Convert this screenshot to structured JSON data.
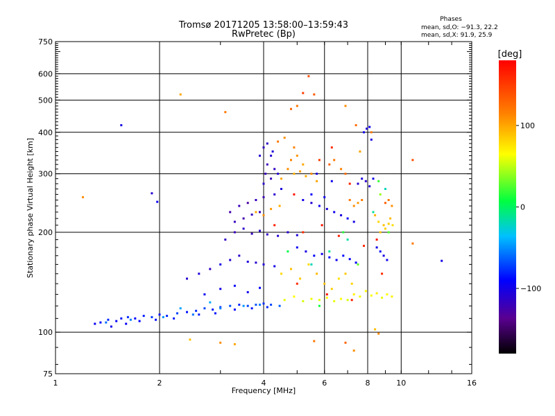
{
  "chart_data": {
    "type": "scatter",
    "title": "Tromsø 20171205 13:58:00–13:59:43",
    "subtitle": "RwPretec (Bp)",
    "xlabel": "Frequency [MHz]",
    "ylabel": "Stationary phase Virtual Height [km]",
    "x_scale": "log",
    "y_scale": "log",
    "xlim": [
      1,
      16
    ],
    "ylim": [
      75,
      750
    ],
    "x_ticks": [
      1,
      2,
      4,
      6,
      8,
      10,
      16
    ],
    "x_tick_labels": [
      "1",
      "2",
      "4",
      "6",
      "8",
      "10",
      "16"
    ],
    "y_ticks": [
      75,
      100,
      200,
      300,
      400,
      500,
      600,
      750
    ],
    "y_tick_labels": [
      "75",
      "100",
      "200",
      "300",
      "400",
      "500",
      "600",
      "750"
    ],
    "grid": true,
    "stats": {
      "header": "Phases",
      "line1": "mean, sd,O: −91.3, 22.2",
      "line2": "mean, sd,X:  91.9, 25.9"
    },
    "colorbar": {
      "label": "[deg]",
      "range": [
        -180,
        180
      ],
      "ticks": [
        100,
        0,
        -100
      ],
      "tick_labels": [
        "100",
        "0",
        "−100"
      ]
    },
    "series": [
      {
        "points": [
          [
            1.3,
            106,
            -95
          ],
          [
            1.35,
            107,
            -88
          ],
          [
            1.42,
            109,
            -80
          ],
          [
            1.5,
            108,
            -92
          ],
          [
            1.55,
            110,
            -85
          ],
          [
            1.62,
            111,
            -78
          ],
          [
            1.7,
            110,
            -90
          ],
          [
            1.8,
            112,
            -82
          ],
          [
            1.9,
            111,
            -75
          ],
          [
            2.0,
            113,
            -88
          ],
          [
            2.1,
            112,
            -80
          ],
          [
            2.25,
            114,
            -72
          ],
          [
            2.4,
            115,
            -85
          ],
          [
            2.55,
            116,
            -78
          ],
          [
            2.7,
            118,
            -70
          ],
          [
            2.85,
            117,
            -82
          ],
          [
            3.0,
            119,
            -75
          ],
          [
            3.2,
            120,
            -68
          ],
          [
            3.4,
            121,
            -80
          ],
          [
            3.6,
            120,
            -72
          ],
          [
            3.8,
            121,
            -66
          ],
          [
            4.0,
            122,
            -78
          ],
          [
            4.2,
            121,
            -70
          ],
          [
            4.45,
            120,
            -64
          ],
          [
            1.45,
            104,
            -98
          ],
          [
            1.6,
            106,
            -94
          ],
          [
            1.75,
            108,
            -90
          ],
          [
            1.95,
            109,
            -86
          ],
          [
            2.2,
            110,
            -84
          ],
          [
            2.6,
            113,
            -82
          ],
          [
            2.9,
            114,
            -86
          ],
          [
            3.3,
            117,
            -88
          ],
          [
            3.7,
            118,
            -84
          ],
          [
            4.1,
            119,
            -80
          ],
          [
            2.4,
            145,
            -110
          ],
          [
            2.6,
            150,
            -105
          ],
          [
            2.8,
            155,
            -115
          ],
          [
            3.0,
            160,
            -100
          ],
          [
            3.2,
            165,
            -108
          ],
          [
            3.4,
            170,
            -112
          ],
          [
            3.6,
            163,
            -104
          ],
          [
            3.8,
            162,
            -110
          ],
          [
            4.0,
            160,
            -106
          ],
          [
            4.3,
            158,
            -100
          ],
          [
            2.7,
            130,
            -95
          ],
          [
            3.0,
            135,
            -100
          ],
          [
            3.3,
            138,
            -92
          ],
          [
            3.6,
            132,
            -96
          ],
          [
            3.9,
            136,
            -90
          ],
          [
            3.1,
            190,
            -115
          ],
          [
            3.3,
            200,
            -120
          ],
          [
            3.5,
            205,
            -112
          ],
          [
            3.7,
            198,
            -118
          ],
          [
            3.9,
            202,
            -110
          ],
          [
            4.1,
            197,
            -114
          ],
          [
            4.4,
            195,
            -108
          ],
          [
            4.7,
            200,
            -112
          ],
          [
            5.0,
            196,
            -106
          ],
          [
            3.2,
            230,
            -125
          ],
          [
            3.4,
            240,
            -120
          ],
          [
            3.6,
            245,
            -128
          ],
          [
            3.8,
            250,
            -118
          ],
          [
            4.0,
            255,
            -122
          ],
          [
            3.3,
            215,
            -118
          ],
          [
            3.5,
            220,
            -124
          ],
          [
            3.7,
            226,
            -116
          ],
          [
            3.9,
            230,
            -120
          ],
          [
            4.0,
            280,
            -112
          ],
          [
            4.2,
            290,
            -118
          ],
          [
            4.4,
            300,
            -110
          ],
          [
            4.3,
            310,
            -115
          ],
          [
            4.1,
            320,
            -120
          ],
          [
            4.2,
            340,
            -108
          ],
          [
            4.0,
            360,
            -116
          ],
          [
            4.1,
            370,
            -112
          ],
          [
            4.3,
            260,
            -110
          ],
          [
            4.5,
            270,
            -104
          ],
          [
            3.9,
            340,
            -110
          ],
          [
            4.05,
            300,
            -118
          ],
          [
            4.25,
            350,
            -106
          ],
          [
            5.0,
            180,
            -95
          ],
          [
            5.3,
            175,
            -100
          ],
          [
            5.6,
            170,
            -92
          ],
          [
            5.9,
            172,
            -98
          ],
          [
            6.2,
            168,
            -90
          ],
          [
            6.5,
            165,
            -96
          ],
          [
            6.8,
            170,
            -88
          ],
          [
            7.1,
            166,
            -94
          ],
          [
            7.4,
            162,
            -90
          ],
          [
            5.2,
            250,
            -100
          ],
          [
            5.5,
            245,
            -108
          ],
          [
            5.8,
            240,
            -96
          ],
          [
            6.1,
            235,
            -104
          ],
          [
            6.4,
            230,
            -98
          ],
          [
            6.7,
            225,
            -102
          ],
          [
            7.0,
            220,
            -94
          ],
          [
            7.3,
            215,
            -100
          ],
          [
            7.5,
            280,
            -110
          ],
          [
            7.7,
            290,
            -104
          ],
          [
            7.9,
            285,
            -112
          ],
          [
            8.1,
            275,
            -106
          ],
          [
            8.3,
            290,
            -98
          ],
          [
            7.8,
            400,
            -100
          ],
          [
            7.95,
            410,
            -108
          ],
          [
            8.1,
            415,
            -96
          ],
          [
            8.2,
            380,
            -104
          ],
          [
            8.5,
            180,
            -100
          ],
          [
            8.7,
            175,
            -94
          ],
          [
            8.9,
            170,
            -102
          ],
          [
            9.1,
            165,
            -96
          ],
          [
            1.55,
            420,
            -100
          ],
          [
            1.9,
            262,
            -110
          ],
          [
            1.97,
            247,
            -95
          ],
          [
            13.1,
            164,
            -100
          ],
          [
            1.4,
            107,
            -60
          ],
          [
            1.65,
            109,
            -55
          ],
          [
            2.05,
            111,
            -50
          ],
          [
            2.5,
            113,
            -58
          ],
          [
            3.0,
            118,
            -52
          ],
          [
            3.5,
            120,
            -48
          ],
          [
            3.9,
            121,
            -55
          ],
          [
            2.3,
            118,
            -45
          ],
          [
            2.8,
            123,
            -42
          ],
          [
            5.5,
            260,
            -92
          ],
          [
            6.0,
            255,
            -98
          ],
          [
            5.7,
            300,
            -104
          ],
          [
            6.3,
            285,
            -96
          ]
        ]
      },
      {
        "points": [
          [
            4.6,
            125,
            60
          ],
          [
            4.9,
            128,
            65
          ],
          [
            5.2,
            124,
            55
          ],
          [
            5.5,
            126,
            62
          ],
          [
            5.8,
            125,
            58
          ],
          [
            6.1,
            127,
            66
          ],
          [
            6.4,
            124,
            60
          ],
          [
            6.7,
            126,
            64
          ],
          [
            7.0,
            125,
            56
          ],
          [
            7.3,
            130,
            70
          ],
          [
            7.6,
            128,
            62
          ],
          [
            7.9,
            133,
            68
          ],
          [
            8.2,
            129,
            64
          ],
          [
            8.5,
            131,
            72
          ],
          [
            8.8,
            127,
            60
          ],
          [
            9.1,
            130,
            66
          ],
          [
            9.4,
            128,
            70
          ],
          [
            4.5,
            290,
            100
          ],
          [
            4.7,
            310,
            110
          ],
          [
            4.9,
            300,
            95
          ],
          [
            5.1,
            305,
            105
          ],
          [
            5.3,
            295,
            98
          ],
          [
            5.5,
            300,
            112
          ],
          [
            5.7,
            285,
            100
          ],
          [
            4.8,
            330,
            115
          ],
          [
            5.0,
            340,
            108
          ],
          [
            5.2,
            320,
            100
          ],
          [
            4.4,
            375,
            120
          ],
          [
            4.6,
            385,
            110
          ],
          [
            4.9,
            360,
            115
          ],
          [
            8.6,
            215,
            80
          ],
          [
            8.9,
            210,
            90
          ],
          [
            9.2,
            212,
            85
          ],
          [
            9.45,
            210,
            78
          ],
          [
            8.4,
            225,
            95
          ],
          [
            8.7,
            200,
            88
          ],
          [
            9.0,
            205,
            84
          ],
          [
            9.3,
            220,
            92
          ],
          [
            4.5,
            150,
            80
          ],
          [
            4.8,
            155,
            90
          ],
          [
            5.1,
            145,
            85
          ],
          [
            5.4,
            160,
            78
          ],
          [
            5.7,
            150,
            92
          ],
          [
            6.0,
            140,
            88
          ],
          [
            6.3,
            135,
            84
          ],
          [
            6.6,
            145,
            76
          ],
          [
            6.9,
            150,
            86
          ],
          [
            7.2,
            140,
            82
          ],
          [
            3.8,
            230,
            100
          ],
          [
            4.0,
            225,
            110
          ],
          [
            4.2,
            235,
            104
          ],
          [
            4.45,
            240,
            96
          ],
          [
            5.4,
            590,
            140
          ],
          [
            5.2,
            525,
            150
          ],
          [
            4.8,
            470,
            130
          ],
          [
            5.0,
            480,
            120
          ],
          [
            5.6,
            520,
            135
          ],
          [
            6.9,
            480,
            110
          ],
          [
            7.4,
            420,
            125
          ],
          [
            7.6,
            350,
            100
          ],
          [
            8.2,
            400,
            120
          ],
          [
            6.2,
            320,
            130
          ],
          [
            6.4,
            330,
            120
          ],
          [
            6.7,
            310,
            115
          ],
          [
            6.9,
            300,
            125
          ],
          [
            7.1,
            250,
            120
          ],
          [
            7.3,
            240,
            110
          ],
          [
            7.5,
            245,
            105
          ],
          [
            7.7,
            250,
            118
          ],
          [
            1.2,
            255,
            110
          ],
          [
            2.3,
            520,
            100
          ],
          [
            3.1,
            460,
            120
          ],
          [
            10.8,
            330,
            140
          ],
          [
            10.8,
            185,
            120
          ],
          [
            2.45,
            95,
            90
          ],
          [
            3.0,
            93,
            110
          ],
          [
            3.3,
            92,
            100
          ],
          [
            6.9,
            93,
            130
          ],
          [
            7.3,
            88,
            110
          ],
          [
            5.6,
            94,
            120
          ],
          [
            8.4,
            102,
            90
          ],
          [
            8.6,
            99,
            110
          ],
          [
            9.0,
            245,
            130
          ],
          [
            9.2,
            250,
            120
          ],
          [
            9.4,
            240,
            110
          ],
          [
            5.2,
            200,
            160
          ],
          [
            5.9,
            210,
            170
          ],
          [
            6.6,
            195,
            165
          ],
          [
            7.8,
            182,
            160
          ],
          [
            8.5,
            190,
            170
          ],
          [
            6.3,
            360,
            160
          ],
          [
            5.8,
            330,
            150
          ],
          [
            7.1,
            280,
            165
          ],
          [
            4.9,
            260,
            170
          ],
          [
            8.8,
            150,
            160
          ],
          [
            7.2,
            125,
            165
          ],
          [
            6.1,
            130,
            170
          ],
          [
            5.0,
            140,
            160
          ],
          [
            4.3,
            210,
            165
          ],
          [
            5.5,
            160,
            -20
          ],
          [
            6.2,
            175,
            -10
          ],
          [
            7.0,
            190,
            -15
          ],
          [
            8.3,
            230,
            -12
          ],
          [
            9.0,
            270,
            -20
          ],
          [
            8.6,
            285,
            20
          ],
          [
            6.8,
            200,
            15
          ],
          [
            5.8,
            120,
            10
          ],
          [
            4.7,
            175,
            5
          ],
          [
            7.5,
            160,
            30
          ],
          [
            8.7,
            260,
            40
          ],
          [
            9.2,
            200,
            25
          ]
        ]
      }
    ]
  }
}
